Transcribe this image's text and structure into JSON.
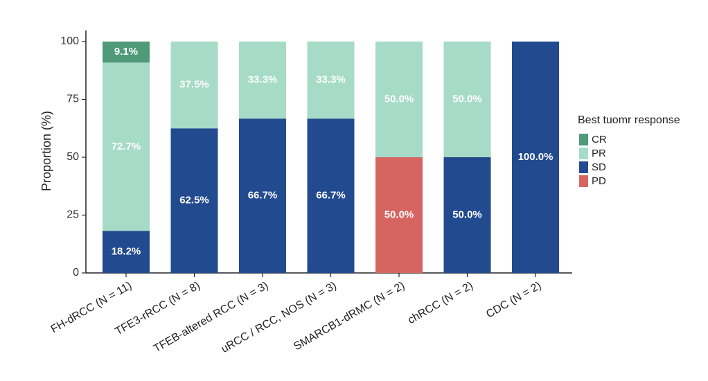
{
  "chart_data": {
    "type": "bar",
    "stacked": true,
    "ylabel": "Proportion (%)",
    "ylim": [
      0,
      100
    ],
    "yticks": [
      0,
      25,
      50,
      75,
      100
    ],
    "categories": [
      "FH-dRCC (N = 11)",
      "TFE3-rRCC (N = 8)",
      "TFEB-altered RCC (N = 3)",
      "uRCC / RCC, NOS (N = 3)",
      "SMARCB1-dRMC (N = 2)",
      "chRCC (N = 2)",
      "CDC (N = 2)"
    ],
    "series": [
      {
        "name": "SD",
        "color": "#224a8f",
        "values": [
          18.2,
          62.5,
          66.7,
          66.7,
          0,
          50.0,
          100.0
        ]
      },
      {
        "name": "PD",
        "color": "#d66562",
        "values": [
          0,
          0,
          0,
          0,
          50.0,
          0,
          0
        ]
      },
      {
        "name": "PR",
        "color": "#a6dbc8",
        "values": [
          72.7,
          37.5,
          33.3,
          33.3,
          50.0,
          50.0,
          0
        ]
      },
      {
        "name": "CR",
        "color": "#4e9a79",
        "values": [
          9.1,
          0,
          0,
          0,
          0,
          0,
          0
        ]
      }
    ],
    "legend": {
      "title": "Best tuomr response",
      "placement": "right",
      "items": [
        "CR",
        "PR",
        "SD",
        "PD"
      ]
    },
    "grid": false
  }
}
